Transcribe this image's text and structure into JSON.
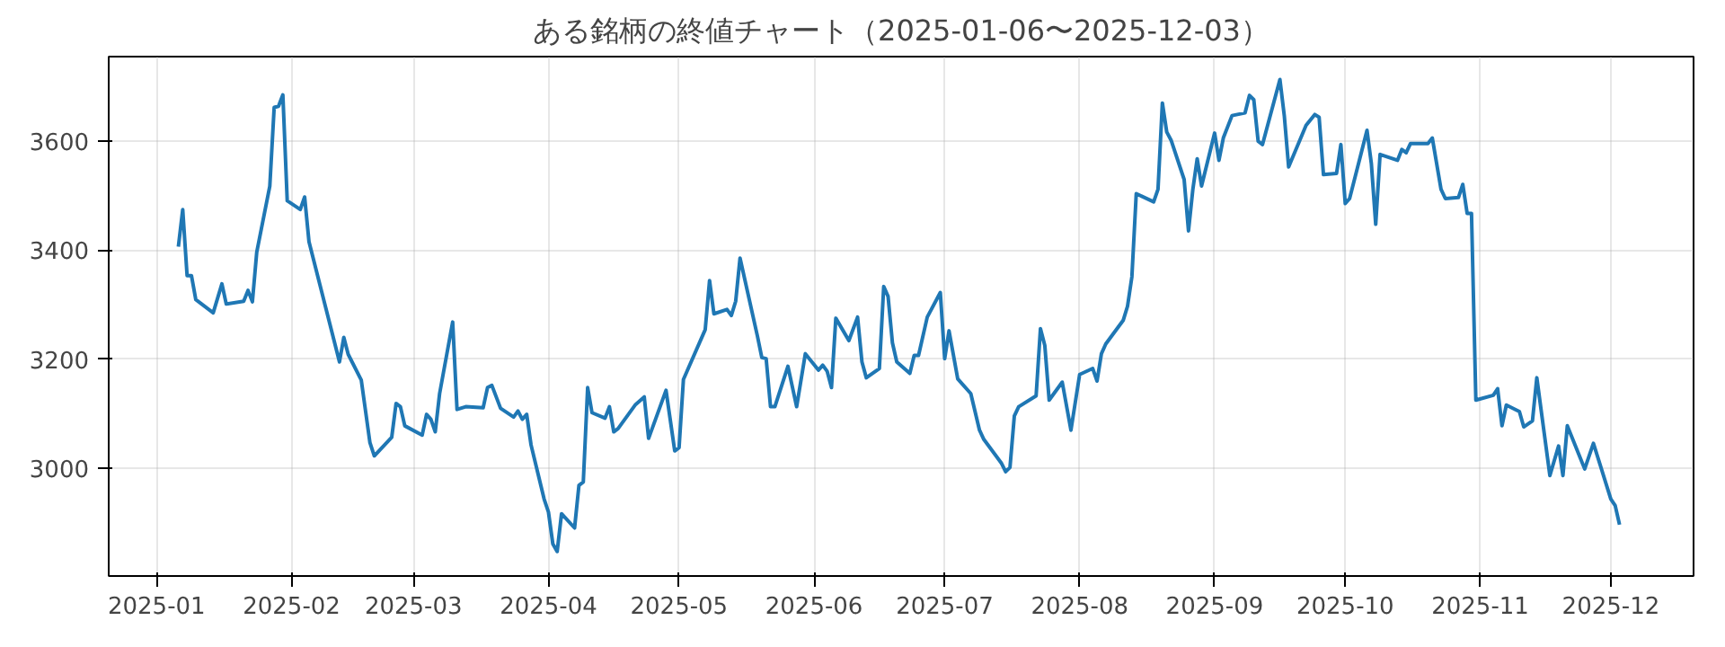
{
  "chart_data": {
    "type": "line",
    "title": "ある銘柄の終値チャート（2025-01-06〜2025-12-03）",
    "x": [
      "2025-01-06",
      "2025-01-07",
      "2025-01-08",
      "2025-01-09",
      "2025-01-10",
      "2025-01-14",
      "2025-01-16",
      "2025-01-17",
      "2025-01-21",
      "2025-01-22",
      "2025-01-23",
      "2025-01-24",
      "2025-01-27",
      "2025-01-28",
      "2025-01-29",
      "2025-01-30",
      "2025-01-31",
      "2025-02-03",
      "2025-02-04",
      "2025-02-05",
      "2025-02-12",
      "2025-02-13",
      "2025-02-14",
      "2025-02-17",
      "2025-02-19",
      "2025-02-20",
      "2025-02-24",
      "2025-02-25",
      "2025-02-26",
      "2025-02-27",
      "2025-03-03",
      "2025-03-04",
      "2025-03-05",
      "2025-03-06",
      "2025-03-07",
      "2025-03-10",
      "2025-03-11",
      "2025-03-13",
      "2025-03-17",
      "2025-03-18",
      "2025-03-19",
      "2025-03-21",
      "2025-03-24",
      "2025-03-25",
      "2025-03-26",
      "2025-03-27",
      "2025-03-28",
      "2025-03-31",
      "2025-04-01",
      "2025-04-02",
      "2025-04-03",
      "2025-04-04",
      "2025-04-07",
      "2025-04-08",
      "2025-04-09",
      "2025-04-10",
      "2025-04-11",
      "2025-04-14",
      "2025-04-15",
      "2025-04-16",
      "2025-04-17",
      "2025-04-21",
      "2025-04-23",
      "2025-04-24",
      "2025-04-28",
      "2025-04-30",
      "2025-05-01",
      "2025-05-02",
      "2025-05-07",
      "2025-05-08",
      "2025-05-09",
      "2025-05-12",
      "2025-05-13",
      "2025-05-14",
      "2025-05-15",
      "2025-05-19",
      "2025-05-20",
      "2025-05-21",
      "2025-05-22",
      "2025-05-23",
      "2025-05-26",
      "2025-05-28",
      "2025-05-30",
      "2025-06-02",
      "2025-06-03",
      "2025-06-04",
      "2025-06-05",
      "2025-06-06",
      "2025-06-09",
      "2025-06-11",
      "2025-06-12",
      "2025-06-13",
      "2025-06-16",
      "2025-06-17",
      "2025-06-18",
      "2025-06-19",
      "2025-06-20",
      "2025-06-23",
      "2025-06-24",
      "2025-06-25",
      "2025-06-27",
      "2025-06-30",
      "2025-07-01",
      "2025-07-02",
      "2025-07-04",
      "2025-07-07",
      "2025-07-09",
      "2025-07-10",
      "2025-07-14",
      "2025-07-15",
      "2025-07-16",
      "2025-07-17",
      "2025-07-18",
      "2025-07-22",
      "2025-07-23",
      "2025-07-24",
      "2025-07-25",
      "2025-07-28",
      "2025-07-30",
      "2025-08-01",
      "2025-08-04",
      "2025-08-05",
      "2025-08-06",
      "2025-08-07",
      "2025-08-11",
      "2025-08-12",
      "2025-08-13",
      "2025-08-14",
      "2025-08-18",
      "2025-08-19",
      "2025-08-20",
      "2025-08-21",
      "2025-08-22",
      "2025-08-25",
      "2025-08-26",
      "2025-08-27",
      "2025-08-28",
      "2025-08-29",
      "2025-09-01",
      "2025-09-02",
      "2025-09-03",
      "2025-09-05",
      "2025-09-08",
      "2025-09-09",
      "2025-09-10",
      "2025-09-11",
      "2025-09-12",
      "2025-09-16",
      "2025-09-17",
      "2025-09-18",
      "2025-09-22",
      "2025-09-24",
      "2025-09-25",
      "2025-09-26",
      "2025-09-29",
      "2025-09-30",
      "2025-10-01",
      "2025-10-02",
      "2025-10-06",
      "2025-10-07",
      "2025-10-08",
      "2025-10-09",
      "2025-10-13",
      "2025-10-14",
      "2025-10-15",
      "2025-10-16",
      "2025-10-20",
      "2025-10-21",
      "2025-10-23",
      "2025-10-24",
      "2025-10-27",
      "2025-10-28",
      "2025-10-29",
      "2025-10-30",
      "2025-10-31",
      "2025-11-04",
      "2025-11-05",
      "2025-11-06",
      "2025-11-07",
      "2025-11-10",
      "2025-11-11",
      "2025-11-13",
      "2025-11-14",
      "2025-11-17",
      "2025-11-19",
      "2025-11-20",
      "2025-11-21",
      "2025-11-25",
      "2025-11-27",
      "2025-12-01",
      "2025-12-02",
      "2025-12-03"
    ],
    "series": [
      {
        "color": "#1f77b4",
        "values": [
          3406,
          3474,
          3353,
          3353,
          3309,
          3285,
          3338,
          3301,
          3306,
          3326,
          3305,
          3396,
          3517,
          3661,
          3663,
          3684,
          3490,
          3474,
          3497,
          3415,
          3195,
          3240,
          3209,
          3162,
          3047,
          3023,
          3057,
          3119,
          3113,
          3078,
          3061,
          3099,
          3090,
          3067,
          3137,
          3268,
          3108,
          3113,
          3111,
          3148,
          3152,
          3110,
          3094,
          3105,
          3090,
          3099,
          3043,
          2944,
          2920,
          2862,
          2848,
          2917,
          2891,
          2969,
          2975,
          3148,
          3102,
          3092,
          3113,
          3067,
          3073,
          3117,
          3131,
          3055,
          3143,
          3032,
          3038,
          3163,
          3254,
          3344,
          3283,
          3291,
          3280,
          3306,
          3385,
          3242,
          3203,
          3201,
          3113,
          3113,
          3187,
          3113,
          3210,
          3180,
          3189,
          3178,
          3148,
          3275,
          3234,
          3277,
          3195,
          3166,
          3183,
          3333,
          3315,
          3230,
          3195,
          3174,
          3207,
          3207,
          3277,
          3322,
          3201,
          3252,
          3164,
          3137,
          3070,
          3053,
          3010,
          2994,
          3002,
          3096,
          3113,
          3133,
          3256,
          3225,
          3125,
          3158,
          3070,
          3172,
          3183,
          3160,
          3210,
          3228,
          3271,
          3297,
          3351,
          3503,
          3488,
          3511,
          3669,
          3616,
          3601,
          3529,
          3435,
          3511,
          3567,
          3517,
          3614,
          3564,
          3605,
          3646,
          3651,
          3683,
          3675,
          3599,
          3593,
          3712,
          3646,
          3552,
          3628,
          3648,
          3643,
          3538,
          3540,
          3593,
          3485,
          3494,
          3619,
          3558,
          3447,
          3575,
          3564,
          3584,
          3578,
          3595,
          3595,
          3605,
          3511,
          3494,
          3496,
          3520,
          3467,
          3467,
          3125,
          3134,
          3146,
          3078,
          3116,
          3104,
          3076,
          3087,
          3166,
          2987,
          3041,
          2987,
          3078,
          2999,
          3046,
          2944,
          2932,
          2897
        ]
      }
    ],
    "xlim": [
      "2024-12-21",
      "2025-12-20"
    ],
    "xticks": [
      {
        "value": "2025-01-01",
        "label": "2025-01"
      },
      {
        "value": "2025-02-01",
        "label": "2025-02"
      },
      {
        "value": "2025-03-01",
        "label": "2025-03"
      },
      {
        "value": "2025-04-01",
        "label": "2025-04"
      },
      {
        "value": "2025-05-01",
        "label": "2025-05"
      },
      {
        "value": "2025-06-01",
        "label": "2025-06"
      },
      {
        "value": "2025-07-01",
        "label": "2025-07"
      },
      {
        "value": "2025-08-01",
        "label": "2025-08"
      },
      {
        "value": "2025-09-01",
        "label": "2025-09"
      },
      {
        "value": "2025-10-01",
        "label": "2025-10"
      },
      {
        "value": "2025-11-01",
        "label": "2025-11"
      },
      {
        "value": "2025-12-01",
        "label": "2025-12"
      }
    ],
    "ylim": [
      2803,
      3754
    ],
    "yticks": [
      3000,
      3200,
      3400,
      3600
    ],
    "grid": true,
    "line_style": "solid"
  }
}
